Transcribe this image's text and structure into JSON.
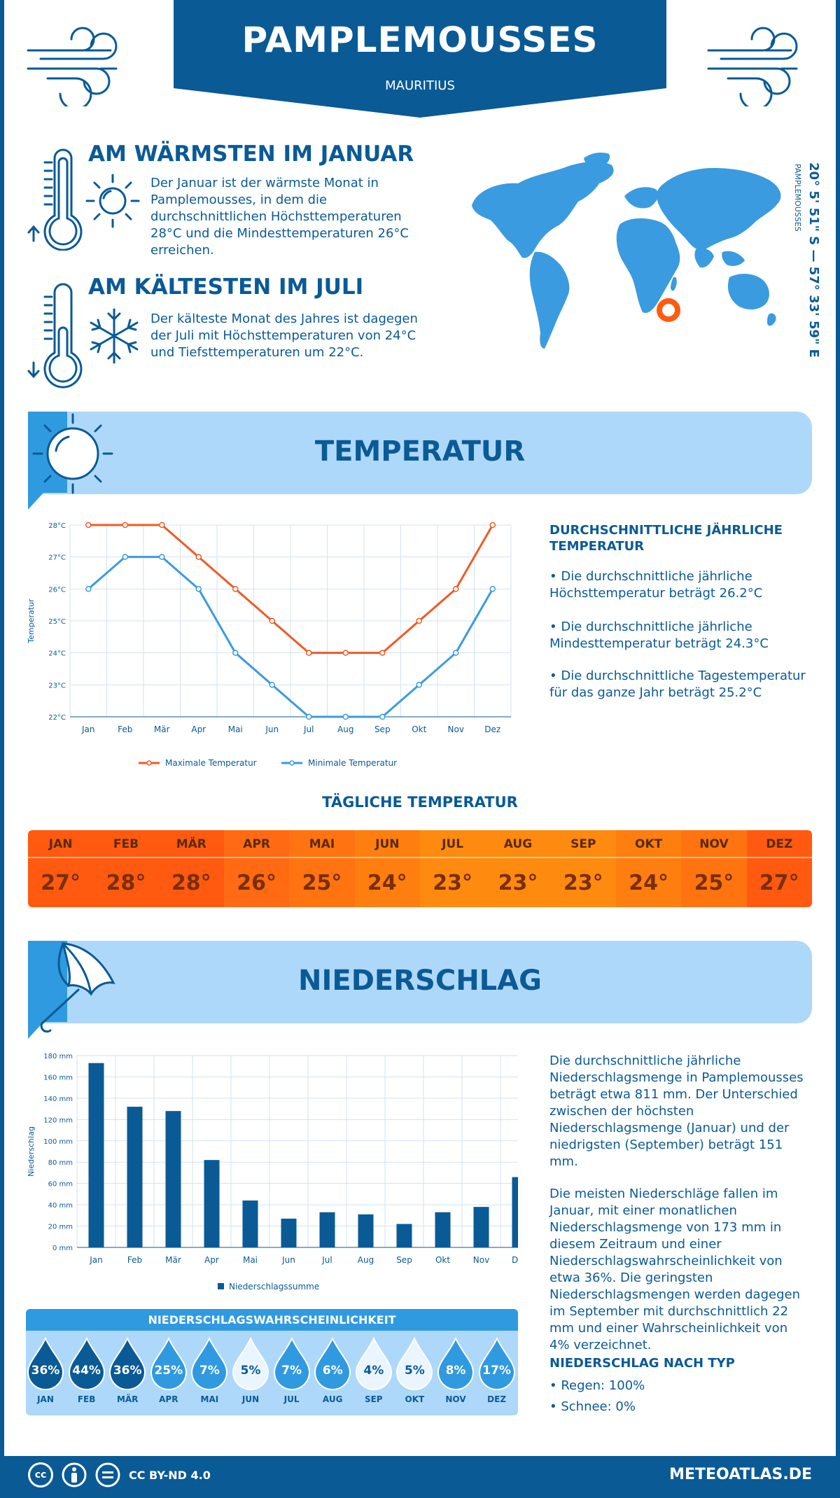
{
  "header": {
    "city": "PAMPLEMOUSSES",
    "country": "MAURITIUS"
  },
  "warmest": {
    "title": "AM WÄRMSTEN IM JANUAR",
    "lines": [
      "Der Januar ist der wärmste Monat in",
      "Pamplemousses, in dem die",
      "durchschnittlichen Höchsttemperaturen",
      "28°C und die Mindesttemperaturen 26°C",
      "erreichen."
    ]
  },
  "coldest": {
    "title": "AM KÄLTESTEN IM JULI",
    "lines": [
      "Der kälteste Monat des Jahres ist dagegen",
      "der Juli mit Höchsttemperaturen von 24°C",
      "und Tiefsttemperaturen um 22°C."
    ]
  },
  "coordinates": {
    "value": "20° 5' 51\" S — 57° 33' 59\" E",
    "place": "PAMPLEMOUSSES"
  },
  "temperature_section": {
    "title": "TEMPERATUR",
    "side_title_lines": [
      "DURCHSCHNITTLICHE JÄHRLICHE",
      "TEMPERATUR"
    ],
    "bullet1": [
      "• Die durchschnittliche jährliche",
      "Höchsttemperatur beträgt 26.2°C"
    ],
    "bullet2": [
      "• Die durchschnittliche jährliche",
      "Mindesttemperatur beträgt 24.3°C"
    ],
    "bullet3": [
      "• Die durchschnittliche Tagestemperatur",
      "für das ganze Jahr beträgt 25.2°C"
    ],
    "daily_title": "TÄGLICHE TEMPERATUR",
    "daily_months": [
      "JAN",
      "FEB",
      "MÄR",
      "APR",
      "MAI",
      "JUN",
      "JUL",
      "AUG",
      "SEP",
      "OKT",
      "NOV",
      "DEZ"
    ],
    "daily_values": [
      "27°",
      "28°",
      "28°",
      "26°",
      "25°",
      "24°",
      "23°",
      "23°",
      "23°",
      "24°",
      "25°",
      "27°"
    ],
    "daily_colors": [
      "#ff5a0f",
      "#ff5a0f",
      "#ff5a0f",
      "#ff6a12",
      "#ff7410",
      "#ff7e10",
      "#ff8a10",
      "#ff8a10",
      "#ff8a10",
      "#ff7e10",
      "#ff7410",
      "#ff5a0f"
    ]
  },
  "precip_section": {
    "title": "NIEDERSCHLAG",
    "para1": [
      "Die durchschnittliche jährliche",
      "Niederschlagsmenge in Pamplemousses",
      "beträgt etwa 811 mm. Der Unterschied",
      "zwischen der höchsten",
      "Niederschlagsmenge (Januar) und der",
      "niedrigsten (September) beträgt 151",
      "mm."
    ],
    "para2": [
      "Die meisten Niederschläge fallen im",
      "Januar, mit einer monatlichen",
      "Niederschlagsmenge von 173 mm in",
      "diesem Zeitraum und einer",
      "Niederschlagswahrscheinlichkeit von",
      "etwa 36%. Die geringsten",
      "Niederschlagsmengen werden dagegen",
      "im September mit durchschnittlich 22",
      "mm und einer Wahrscheinlichkeit von",
      "4% verzeichnet."
    ],
    "type_title": "NIEDERSCHLAG NACH TYP",
    "type_rain": "• Regen: 100%",
    "type_snow": "• Schnee: 0%",
    "prob_title": "NIEDERSCHLAGSWAHRSCHEINLICHKEIT",
    "prob_months": [
      "JAN",
      "FEB",
      "MÄR",
      "APR",
      "MAI",
      "JUN",
      "JUL",
      "AUG",
      "SEP",
      "OKT",
      "NOV",
      "DEZ"
    ],
    "prob_values": [
      "36%",
      "44%",
      "36%",
      "25%",
      "7%",
      "5%",
      "7%",
      "6%",
      "4%",
      "5%",
      "8%",
      "17%"
    ]
  },
  "chart_data": [
    {
      "type": "line",
      "ylabel": "Temperatur",
      "categories": [
        "Jan",
        "Feb",
        "Mär",
        "Apr",
        "Mai",
        "Jun",
        "Jul",
        "Aug",
        "Sep",
        "Okt",
        "Nov",
        "Dez"
      ],
      "ylim": [
        22,
        28
      ],
      "yticks": [
        "22°C",
        "23°C",
        "24°C",
        "25°C",
        "26°C",
        "27°C",
        "28°C"
      ],
      "series": [
        {
          "name": "Maximale Temperatur",
          "color": "#f05a23",
          "values": [
            28,
            28,
            28,
            27,
            26,
            25,
            24,
            24,
            24,
            25,
            26,
            28
          ]
        },
        {
          "name": "Minimale Temperatur",
          "color": "#3a9be0",
          "values": [
            26,
            27,
            27,
            26,
            24,
            23,
            22,
            22,
            22,
            23,
            24,
            26
          ]
        }
      ],
      "grid": true,
      "legend": "bottom"
    },
    {
      "type": "bar",
      "ylabel": "Niederschlag",
      "categories": [
        "Jan",
        "Feb",
        "Mär",
        "Apr",
        "Mai",
        "Jun",
        "Jul",
        "Aug",
        "Sep",
        "Okt",
        "Nov",
        "Dez"
      ],
      "ylim": [
        0,
        180
      ],
      "yticks": [
        "0 mm",
        "20 mm",
        "40 mm",
        "60 mm",
        "80 mm",
        "100 mm",
        "120 mm",
        "140 mm",
        "160 mm",
        "180 mm"
      ],
      "series": [
        {
          "name": "Niederschlagssumme",
          "color": "#0a5a96",
          "values": [
            173,
            132,
            128,
            82,
            44,
            27,
            33,
            31,
            22,
            33,
            38,
            66
          ]
        }
      ],
      "grid": true,
      "legend": "bottom"
    }
  ],
  "footer": {
    "license": "CC BY-ND 4.0",
    "site": "METEOATLAS.DE",
    "cc": "cc"
  }
}
